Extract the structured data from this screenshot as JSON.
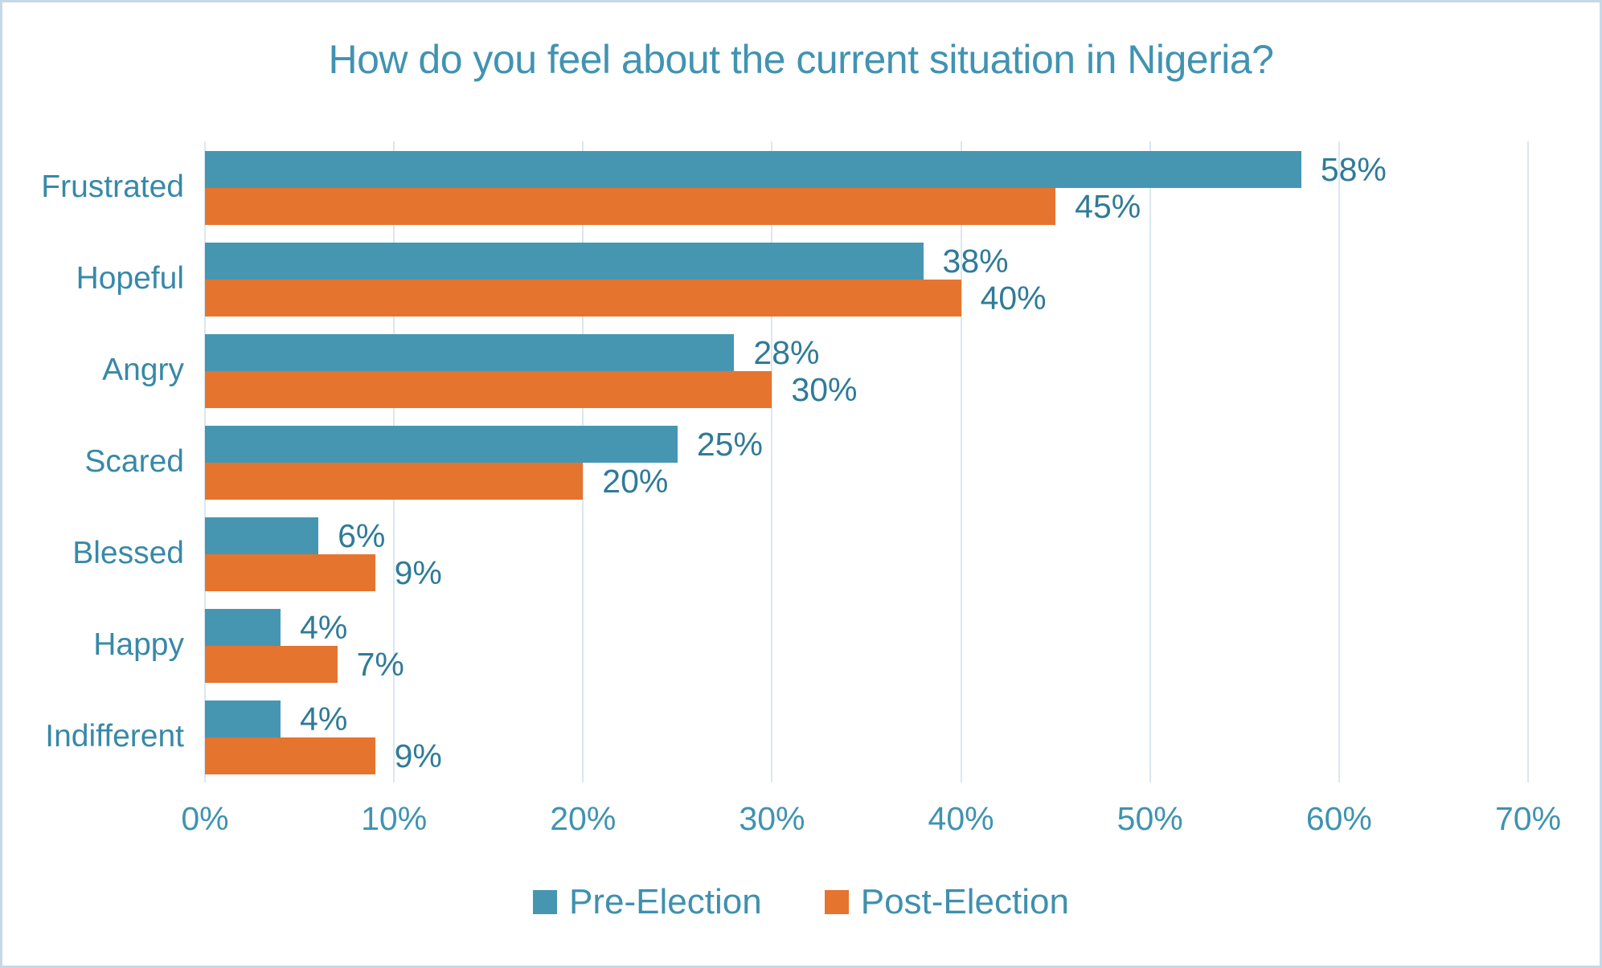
{
  "title": "How do you feel about the current situation in Nigeria?",
  "chart_data": {
    "type": "bar",
    "orientation": "horizontal",
    "title": "How do you feel about the current situation in Nigeria?",
    "categories": [
      "Frustrated",
      "Hopeful",
      "Angry",
      "Scared",
      "Blessed",
      "Happy",
      "Indifferent"
    ],
    "series": [
      {
        "name": "Pre-Election",
        "color": "#4696b2",
        "values": [
          58,
          38,
          28,
          25,
          6,
          4,
          4
        ]
      },
      {
        "name": "Post-Election",
        "color": "#e5742f",
        "values": [
          45,
          40,
          30,
          20,
          9,
          7,
          9
        ]
      }
    ],
    "data_label_suffix": "%",
    "x_axis": {
      "min": 0,
      "max": 70,
      "tick_step": 10,
      "tick_labels": [
        "0%",
        "10%",
        "20%",
        "30%",
        "40%",
        "50%",
        "60%",
        "70%"
      ]
    },
    "grid": "vertical-only",
    "legend_position": "bottom"
  },
  "colors": {
    "title_text": "#4193b1",
    "category_text": "#3789a8",
    "tick_text": "#3f93b1",
    "data_label_text": "#2f7b98",
    "legend_text": "#3f90ae",
    "gridline": "#d9e7f0",
    "border": "#c5d9e6",
    "background": "#ffffff"
  }
}
